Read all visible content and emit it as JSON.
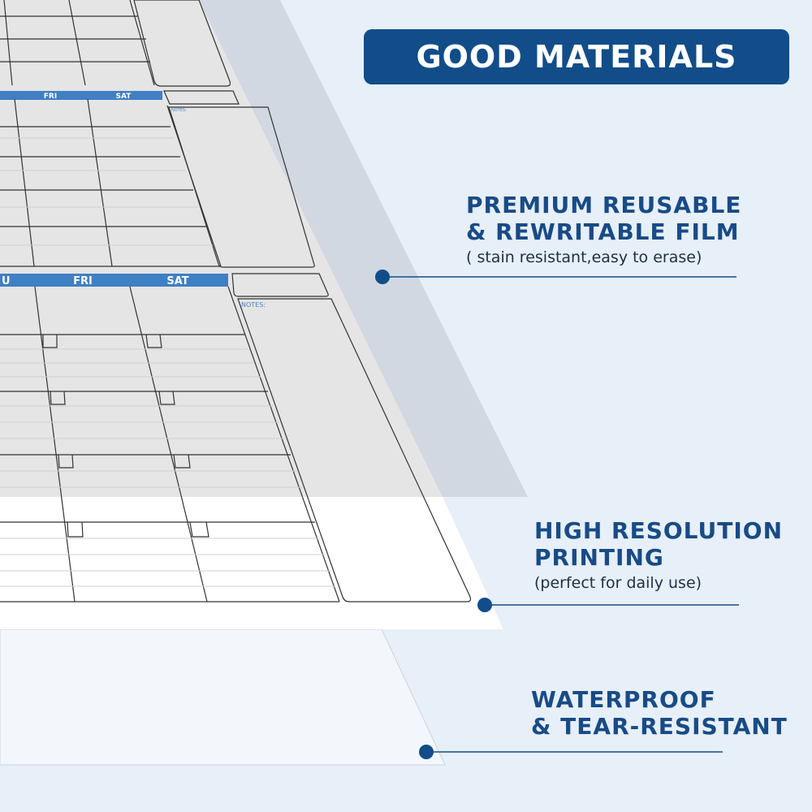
{
  "banner": {
    "title": "GOOD MATERIALS"
  },
  "features": [
    {
      "title_line1": "PREMIUM REUSABLE",
      "title_line2": "& REWRITABLE FILM",
      "subtitle": "( stain resistant,easy to erase)"
    },
    {
      "title_line1": "HIGH RESOLUTION",
      "title_line2": "PRINTING",
      "subtitle": "(perfect for daily use)"
    },
    {
      "title_line1": "WATERPROOF",
      "title_line2": "& TEAR-RESISTANT",
      "subtitle": ""
    }
  ],
  "calendar": {
    "top_headers": [
      "FRI",
      "SAT"
    ],
    "main_headers": [
      "U",
      "FRI",
      "SAT"
    ],
    "notes_label": "NOTES:"
  },
  "colors": {
    "brand": "#124d8a",
    "header_blue": "#3f7fc4",
    "background": "#e7eff8"
  }
}
